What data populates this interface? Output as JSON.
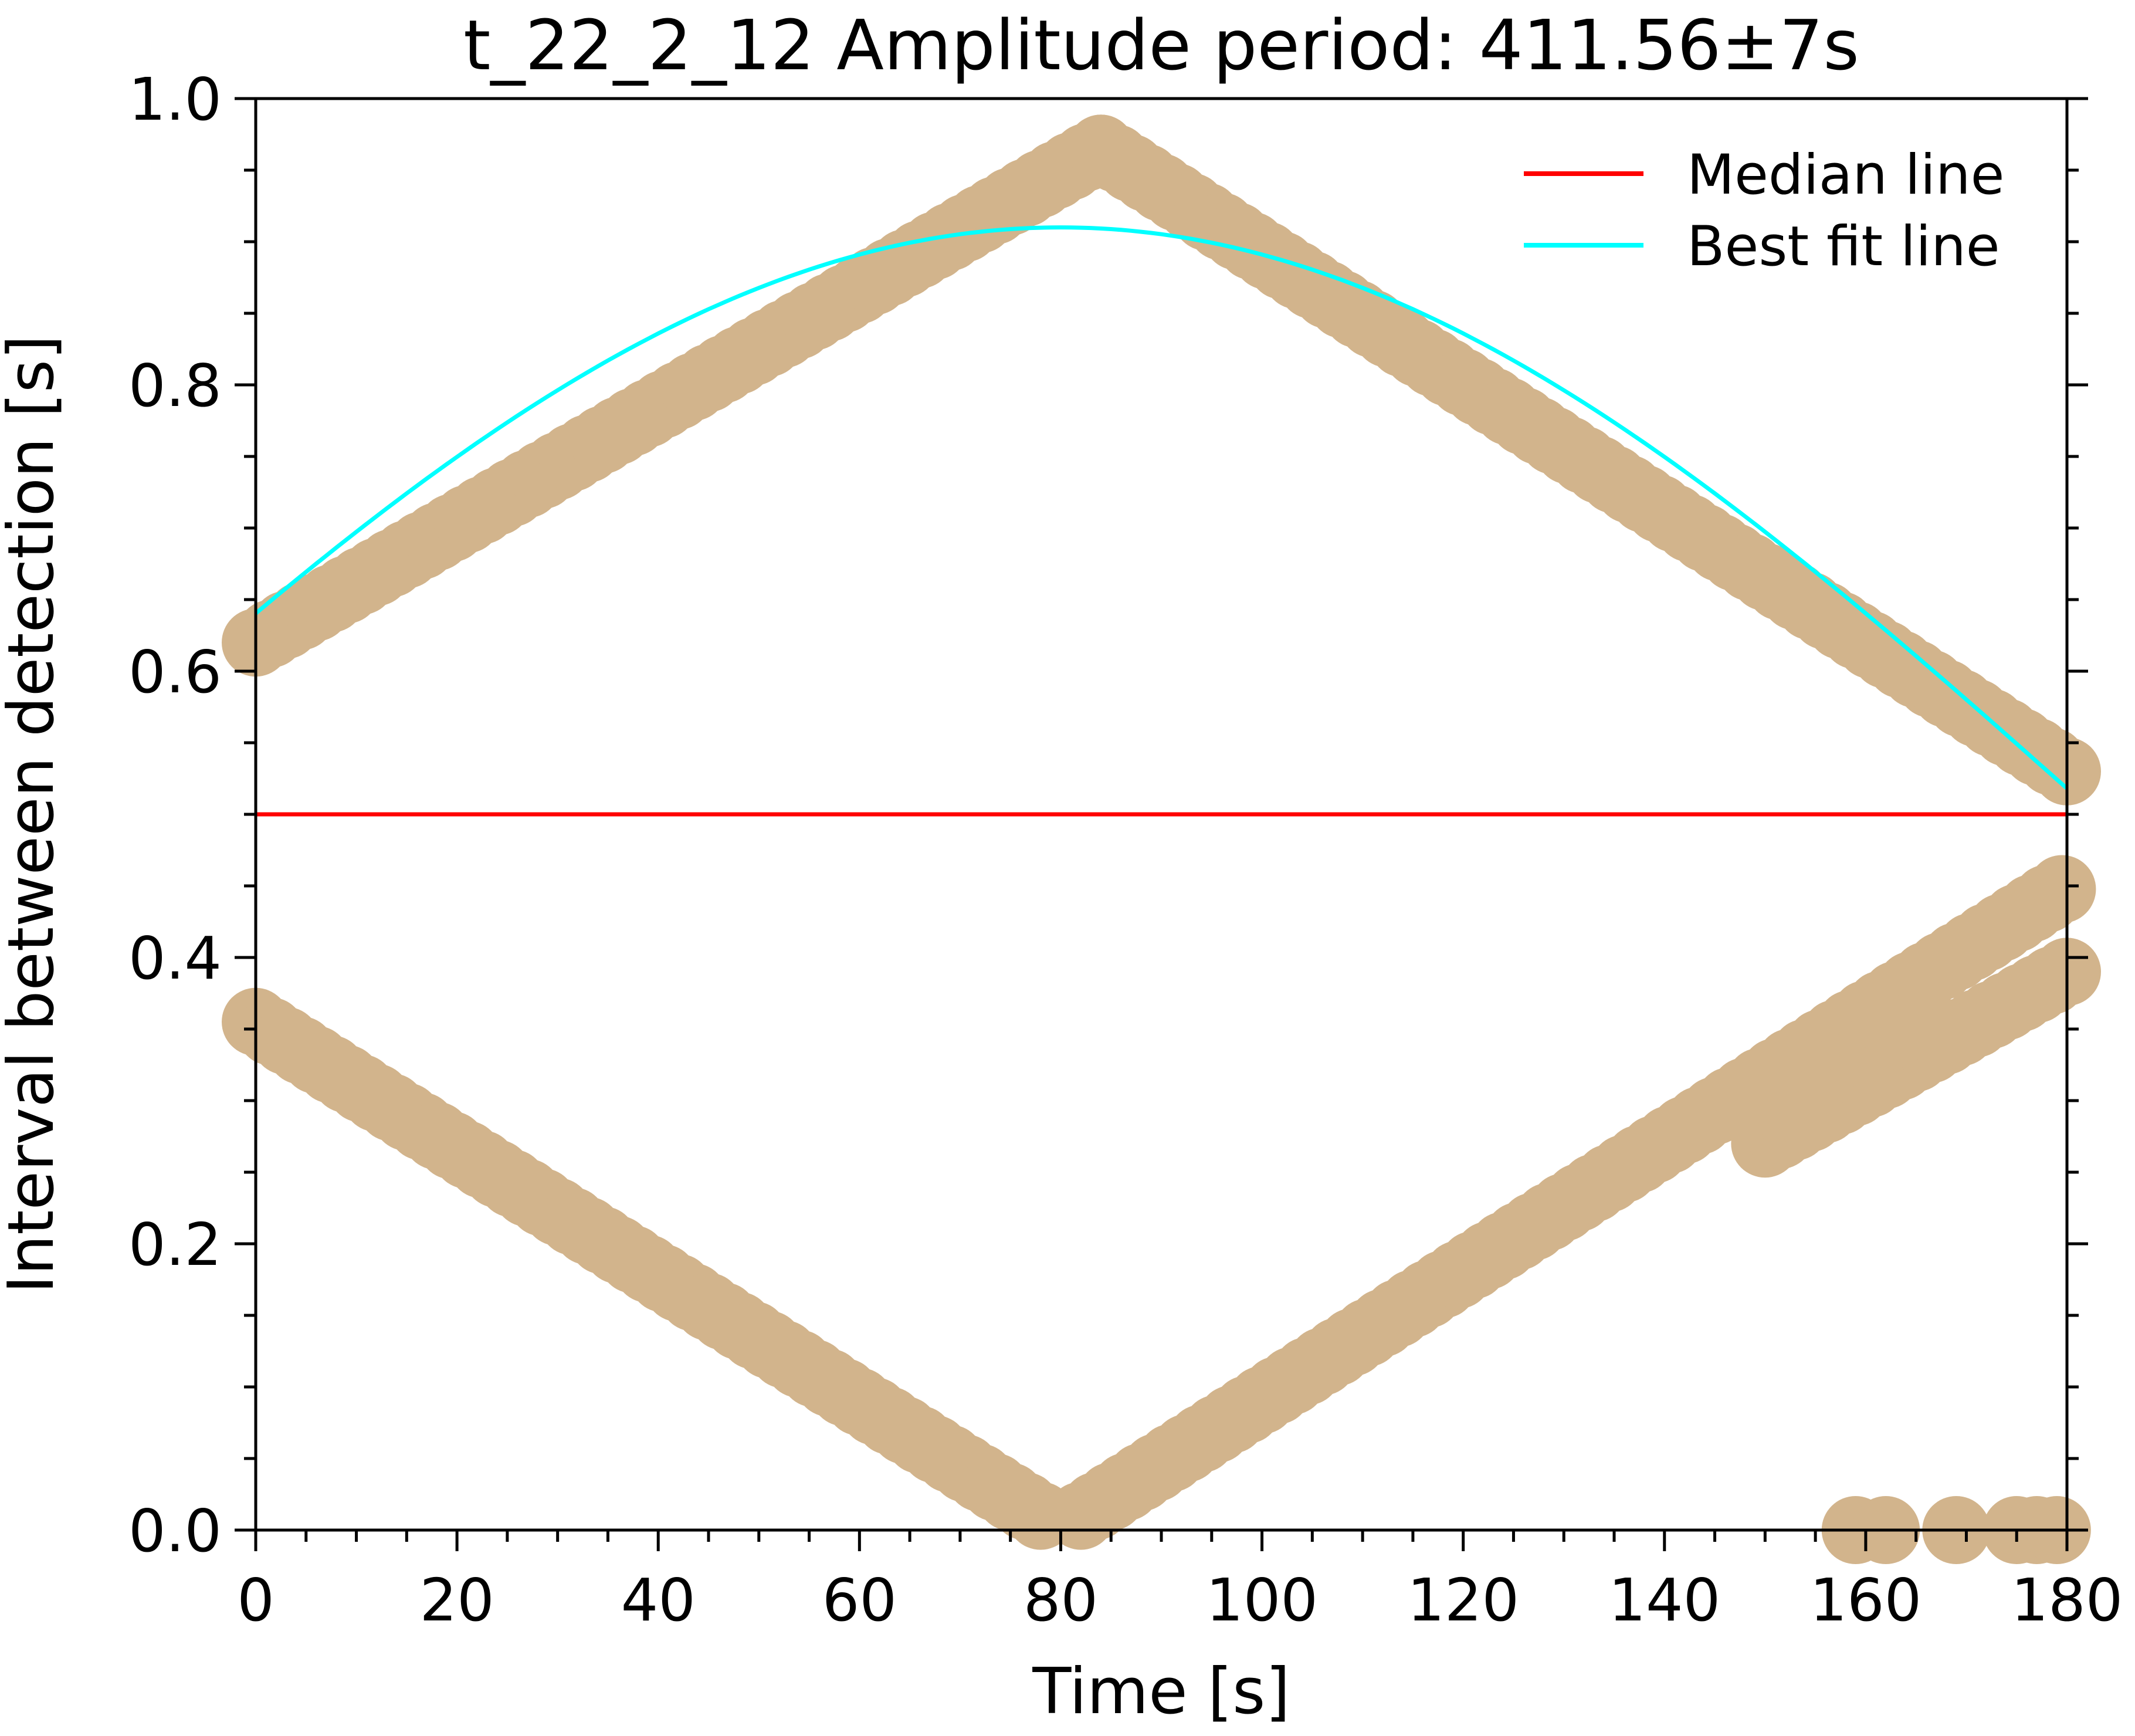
{
  "chart_data": {
    "type": "scatter",
    "title": "t_22_2_12 Amplitude period: 411.56±7s",
    "xlabel": "Time [s]",
    "ylabel": "Interval between detection [s]",
    "xlim": [
      0,
      180
    ],
    "ylim": [
      0,
      1.0
    ],
    "x_major_ticks": [
      0,
      20,
      40,
      60,
      80,
      100,
      120,
      140,
      160,
      180
    ],
    "x_tick_labels": [
      "0",
      "20",
      "40",
      "60",
      "80",
      "100",
      "120",
      "140",
      "160",
      "180"
    ],
    "x_minor_step": 5,
    "y_major_ticks": [
      0,
      0.2,
      0.4,
      0.6,
      0.8,
      1.0
    ],
    "y_tick_labels": [
      "0.0",
      "0.2",
      "0.4",
      "0.6",
      "0.8",
      "1.0"
    ],
    "y_minor_step": 0.05,
    "grid": false,
    "legend_position": "top-right",
    "colors": {
      "points": "#d2b48c",
      "median": "#ff0000",
      "fit": "#00ffff",
      "axes": "#000000"
    },
    "series": [
      {
        "kind": "scatter",
        "color": "#d2b48c",
        "segments": [
          {
            "x_start": 0,
            "x_end": 84,
            "x_step": 1.5,
            "y_start": 0.62,
            "y_end": 0.965
          },
          {
            "x_start": 84,
            "x_end": 180,
            "x_step": 1.5,
            "y_start": 0.965,
            "y_end": 0.53
          },
          {
            "x_start": 0,
            "x_end": 78,
            "x_step": 1.5,
            "y_start": 0.355,
            "y_end": 0.01
          },
          {
            "x_start": 82,
            "x_end": 180,
            "x_step": 1.5,
            "y_start": 0.01,
            "y_end": 0.45
          },
          {
            "x_start": 150,
            "x_end": 180,
            "x_step": 1.5,
            "y_start": 0.27,
            "y_end": 0.39
          }
        ],
        "points": [
          {
            "x": 159,
            "y": 0.0
          },
          {
            "x": 162,
            "y": 0.0
          },
          {
            "x": 169,
            "y": 0.0
          },
          {
            "x": 175,
            "y": 0.0
          },
          {
            "x": 177,
            "y": 0.0
          },
          {
            "x": 179,
            "y": 0.0
          }
        ]
      },
      {
        "name": "Median line",
        "kind": "line",
        "color": "#ff0000",
        "x": [
          0,
          180
        ],
        "y": [
          0.5,
          0.5
        ]
      },
      {
        "name": "Best fit line",
        "kind": "sine",
        "color": "#00ffff",
        "midline": 0.5,
        "amplitude": 0.41,
        "period": 411.56,
        "peak_x": 80,
        "x_range": [
          0,
          180
        ]
      }
    ],
    "legend": [
      "Median line",
      "Best fit line"
    ]
  }
}
